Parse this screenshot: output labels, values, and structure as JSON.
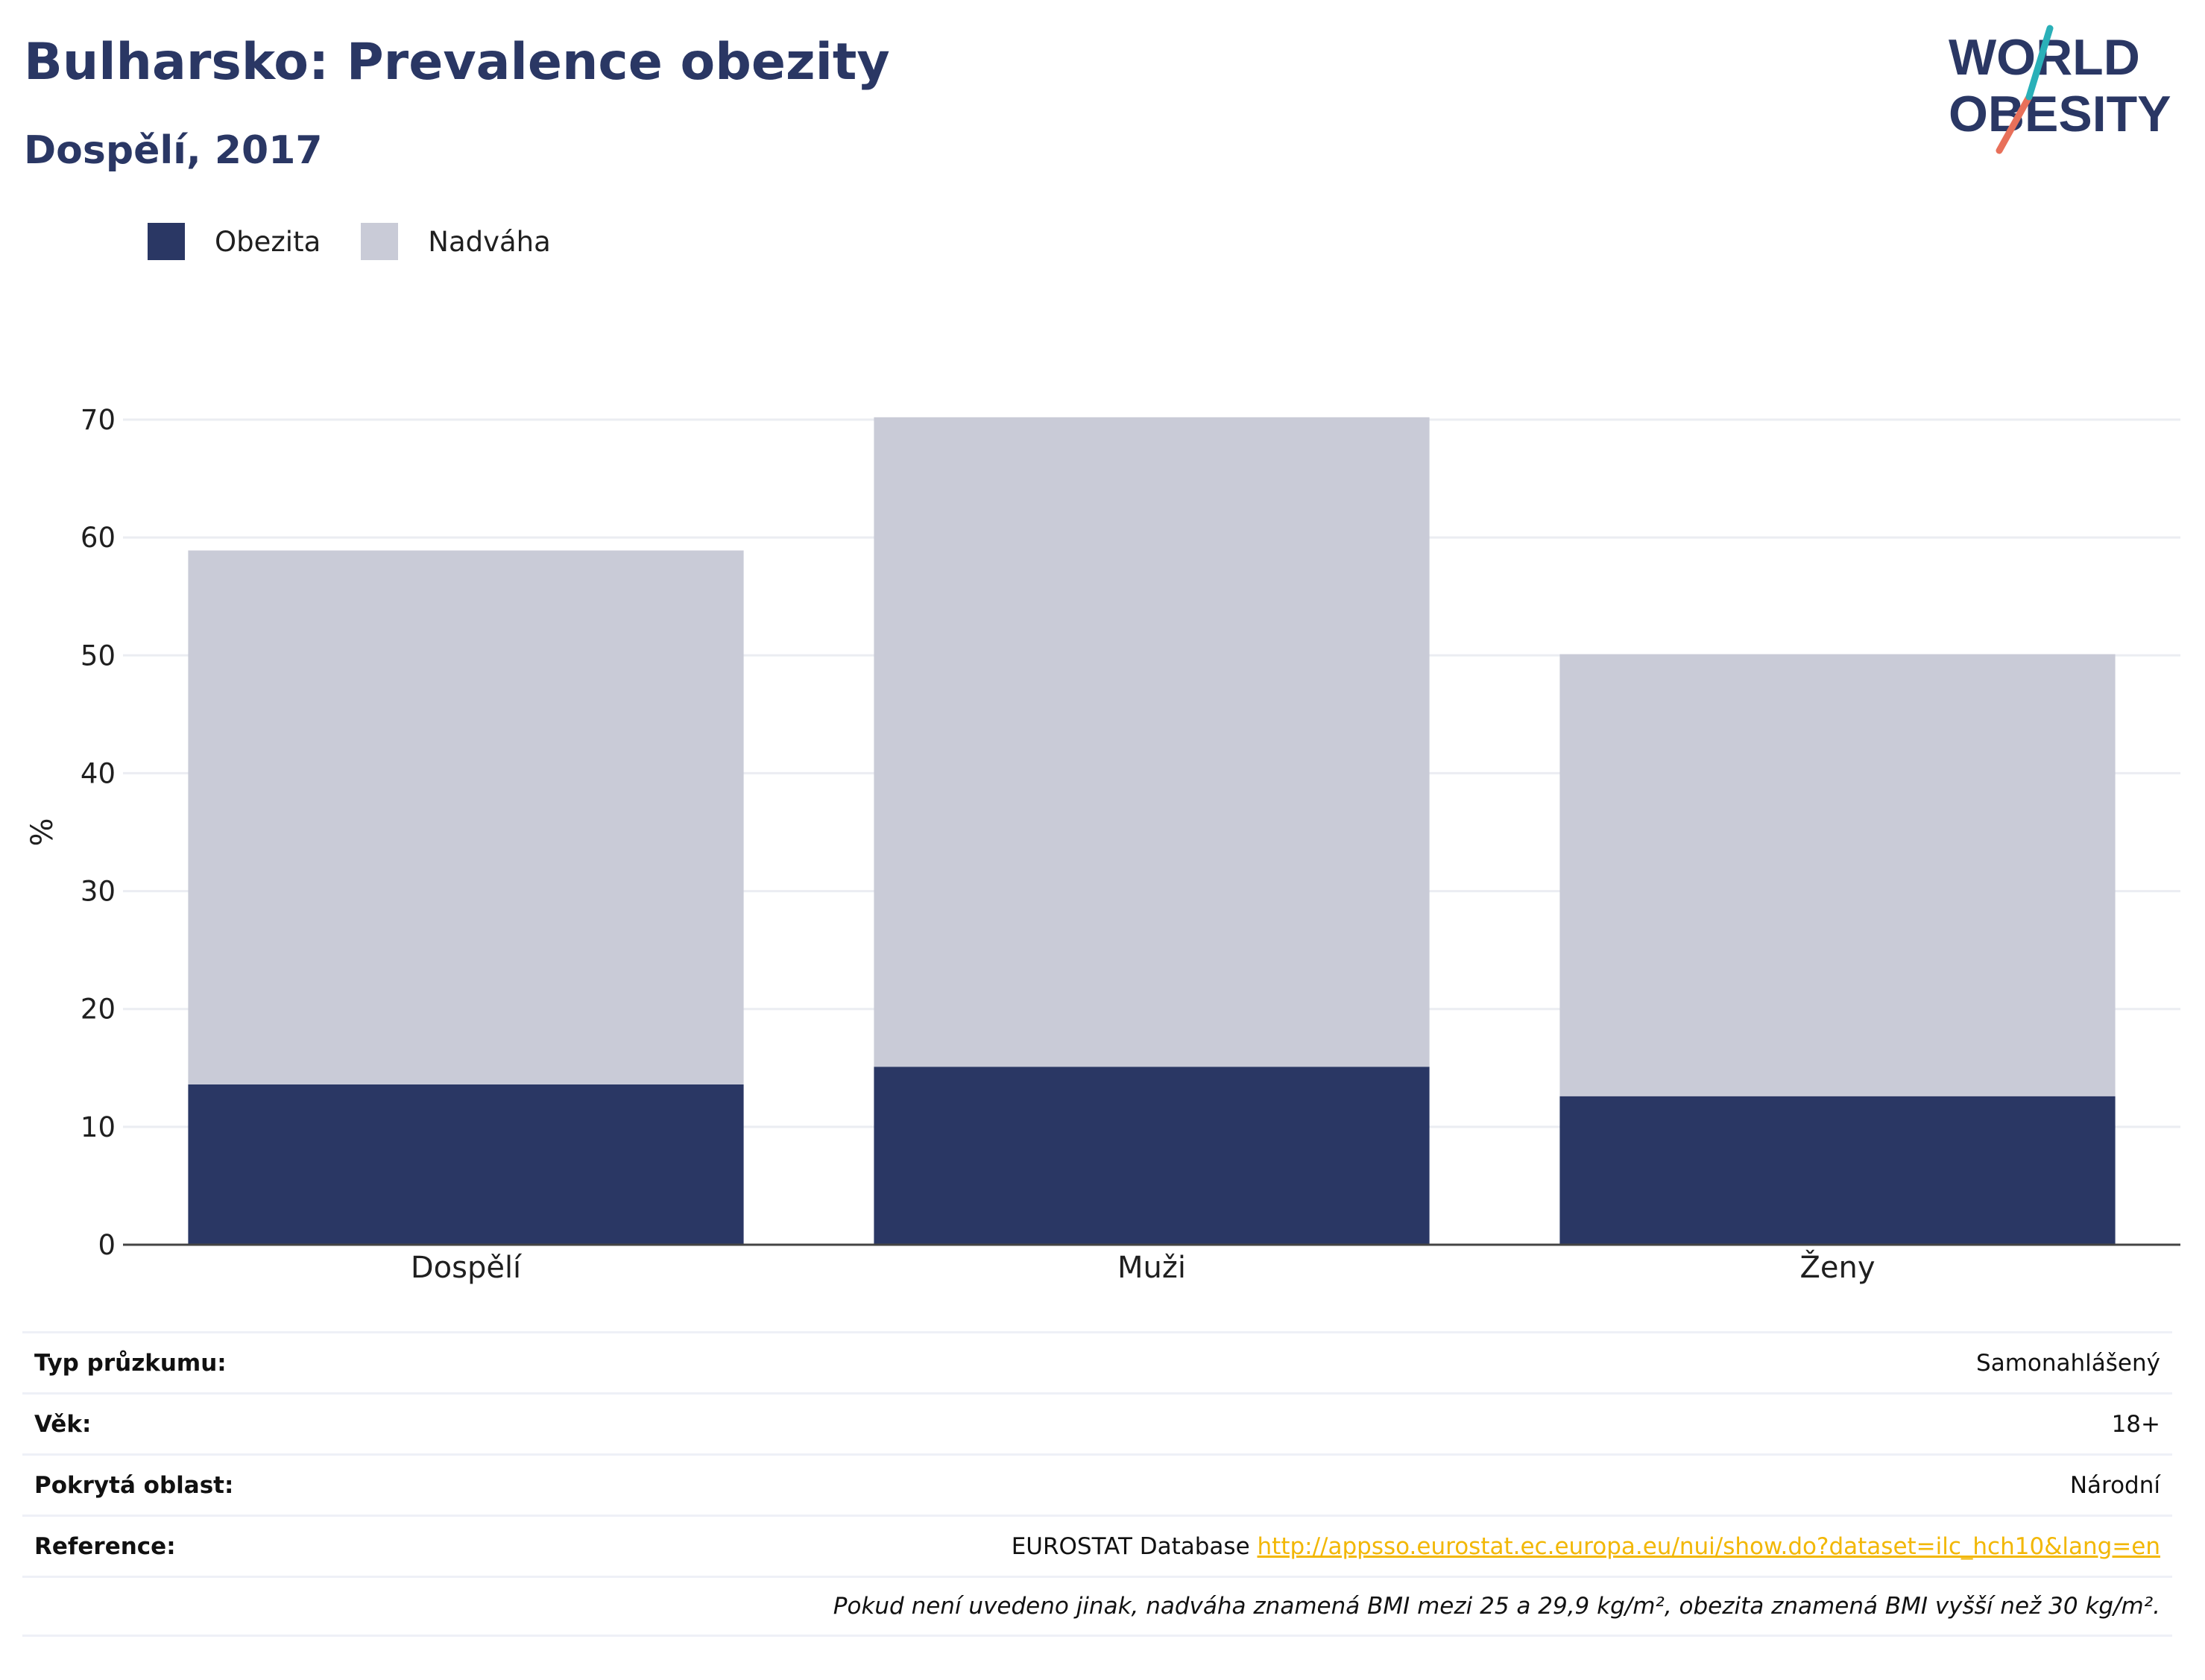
{
  "title": "Bulharsko: Prevalence obezity",
  "subtitle": "Dospělí, 2017",
  "logo": {
    "line1": "WORLD",
    "line2": "OBESITY"
  },
  "colors": {
    "obesity": "#2a3764",
    "overweight": "#c9cbd7",
    "text": "#2a3764",
    "accent_teal": "#2ab0b8",
    "accent_red": "#e8705a",
    "link": "#f2b705"
  },
  "chart_data": {
    "type": "bar",
    "stacked": true,
    "categories": [
      "Dospělí",
      "Muži",
      "Ženy"
    ],
    "series": [
      {
        "name": "Obezita",
        "values": [
          13.6,
          15.1,
          12.6
        ]
      },
      {
        "name": "Nadváha",
        "values": [
          45.3,
          55.1,
          37.5
        ]
      }
    ],
    "ylabel": "%",
    "ylim": [
      0,
      70
    ],
    "yticks": [
      0,
      10,
      20,
      30,
      40,
      50,
      60,
      70
    ],
    "grid": true,
    "legend_position": "top-left"
  },
  "info": {
    "survey_type": {
      "label": "Typ průzkumu:",
      "value": "Samonahlášený"
    },
    "age": {
      "label": "Věk:",
      "value": "18+"
    },
    "area": {
      "label": "Pokrytá oblast:",
      "value": "Národní"
    },
    "reference": {
      "label": "Reference:",
      "value": "EUROSTAT Database",
      "link": "http://appsso.eurostat.ec.europa.eu/nui/show.do?dataset=ilc_hch10&lang=en"
    },
    "note": "Pokud není uvedeno jinak, nadváha znamená BMI mezi 25 a 29,9 kg/m², obezita znamená BMI vyšší než 30 kg/m²."
  }
}
